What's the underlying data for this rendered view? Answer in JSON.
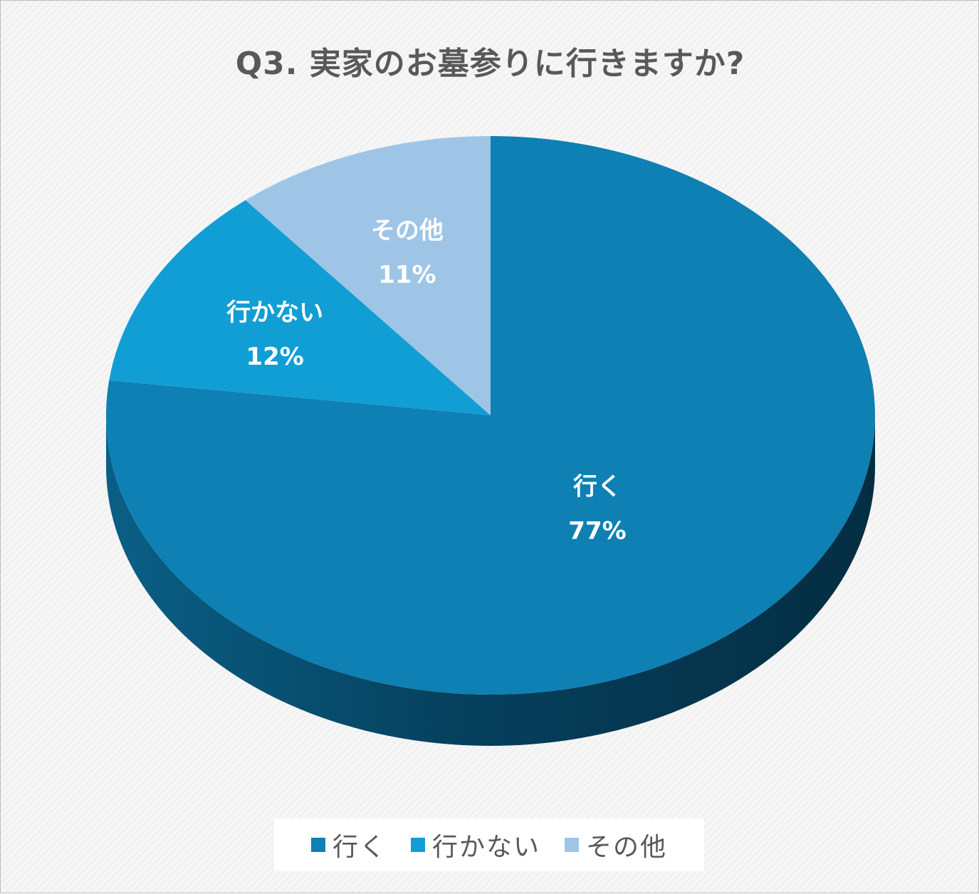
{
  "chart_data": {
    "type": "pie",
    "title": "Q3. 実家のお墓参りに行きますか?",
    "categories": [
      "行く",
      "行かない",
      "その他"
    ],
    "values": [
      77,
      12,
      11
    ],
    "value_labels": [
      "77%",
      "12%",
      "11%"
    ],
    "colors": [
      "#0e80b3",
      "#119ed4",
      "#9fc5e6"
    ],
    "side_colors": [
      "#074a6a",
      "#0a6a8e",
      "#6d94b7"
    ],
    "legend_position": "bottom",
    "style": "3d"
  }
}
